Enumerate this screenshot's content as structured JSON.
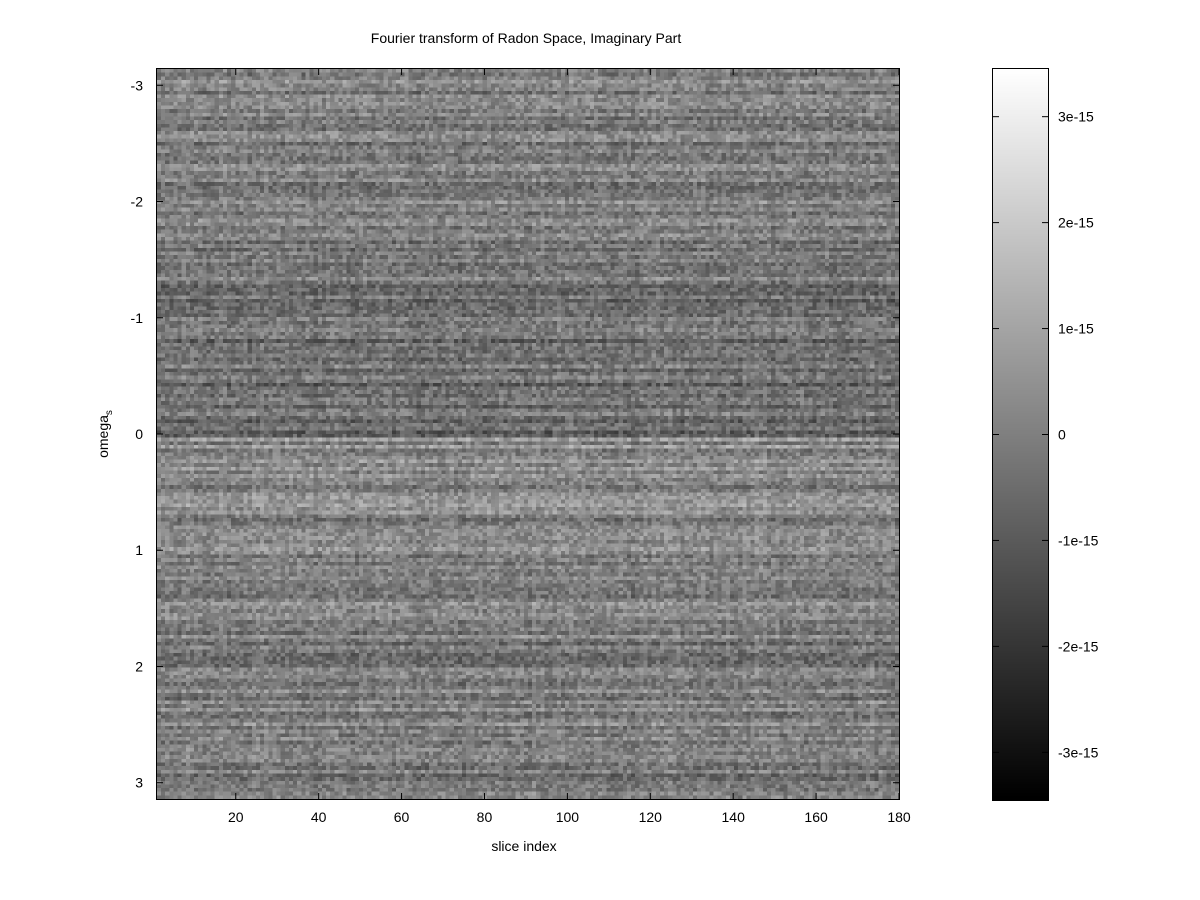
{
  "chart_data": {
    "type": "heatmap",
    "title": "Fourier transform of Radon Space, Imaginary Part",
    "xlabel": "slice index",
    "ylabel": "omega",
    "ylabel_subscript": "s",
    "xlim": [
      1,
      180
    ],
    "ylim": [
      -3.14,
      3.14
    ],
    "y_axis_inverted": true,
    "x_ticks": [
      20,
      40,
      60,
      80,
      100,
      120,
      140,
      160,
      180
    ],
    "y_ticks": [
      -3,
      -2,
      -1,
      0,
      1,
      2,
      3
    ],
    "colorbar": {
      "range": [
        -3.45e-15,
        3.45e-15
      ],
      "ticks": [
        {
          "value": 3e-15,
          "label": "3e-15"
        },
        {
          "value": 2e-15,
          "label": "2e-15"
        },
        {
          "value": 1e-15,
          "label": "1e-15"
        },
        {
          "value": 0,
          "label": "0"
        },
        {
          "value": -1e-15,
          "label": "-1e-15"
        },
        {
          "value": -2e-15,
          "label": "-2e-15"
        },
        {
          "value": -3e-15,
          "label": "-3e-15"
        }
      ],
      "colormap": "gray",
      "low_color": "#000000",
      "high_color": "#ffffff"
    },
    "grid": false,
    "legend": "none",
    "note": "values are noise-like near zero; rows near omega=0 darker above and lighter below"
  }
}
